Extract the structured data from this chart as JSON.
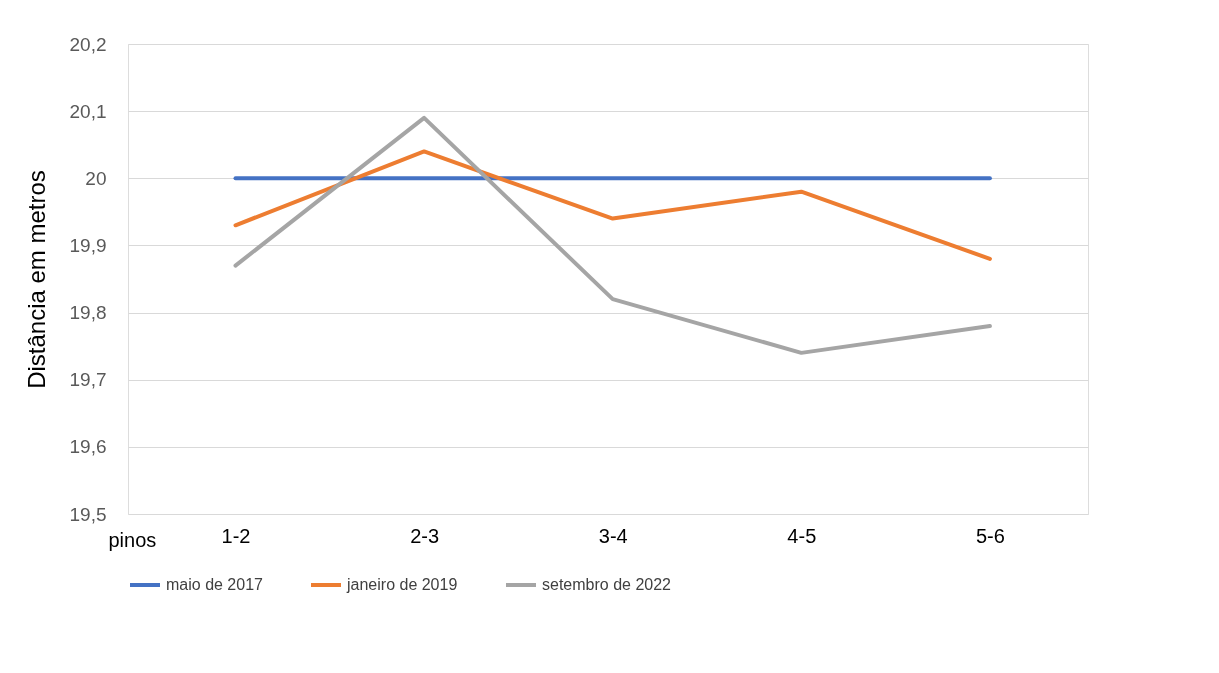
{
  "chart_data": {
    "type": "line",
    "categories": [
      "1-2",
      "2-3",
      "3-4",
      "4-5",
      "5-6"
    ],
    "xlabel": "pinos",
    "ylabel": "Distância em metros",
    "ylim": [
      19.5,
      20.2
    ],
    "yticks": [
      {
        "value": 19.5,
        "label": "19,5"
      },
      {
        "value": 19.6,
        "label": "19,6"
      },
      {
        "value": 19.7,
        "label": "19,7"
      },
      {
        "value": 19.8,
        "label": "19,8"
      },
      {
        "value": 19.9,
        "label": "19,9"
      },
      20,
      {
        "value": 20.1,
        "label": "20,1"
      },
      {
        "value": 20.2,
        "label": "20,2"
      }
    ],
    "grid": "y",
    "legend": "bottom",
    "marker": "none",
    "line_style": "solid",
    "series": [
      {
        "name": "maio de 2017",
        "color": "#4472c4",
        "values": [
          20,
          20,
          20,
          20,
          20
        ]
      },
      {
        "name": "janeiro de 2019",
        "color": "#ed7d31",
        "values": [
          19.93,
          20.04,
          19.94,
          19.98,
          19.88
        ]
      },
      {
        "name": "setembro de 2022",
        "color": "#a5a5a5",
        "values": [
          19.87,
          20.09,
          19.82,
          19.74,
          19.78
        ]
      }
    ]
  }
}
